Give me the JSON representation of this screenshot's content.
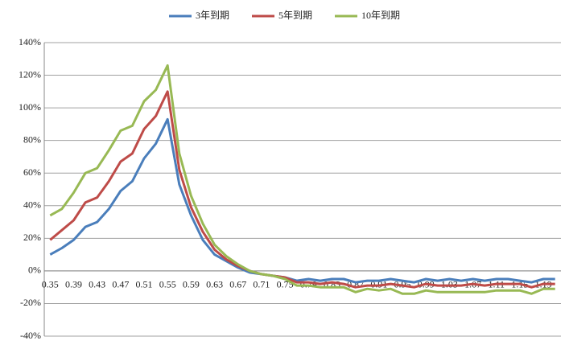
{
  "chart_data": {
    "type": "line",
    "categories": [
      "0.35",
      null,
      "0.39",
      null,
      "0.43",
      null,
      "0.47",
      null,
      "0.51",
      null,
      "0.55",
      null,
      "0.59",
      null,
      "0.63",
      null,
      "0.67",
      null,
      "0.71",
      null,
      "0.75",
      null,
      "0.79",
      null,
      "0.83",
      null,
      "0.87",
      null,
      "0.91",
      null,
      "0.95",
      null,
      "0.99",
      null,
      "1.03",
      null,
      "1.07",
      null,
      "1.11",
      null,
      "1.15",
      null,
      "1.19",
      null
    ],
    "series": [
      {
        "name": "3年到期",
        "color": "#4a7ebb",
        "values": [
          10,
          14,
          19,
          27,
          30,
          38,
          49,
          55,
          69,
          78,
          93,
          53,
          34,
          19,
          10,
          6,
          2,
          -1,
          -2,
          -3,
          -4,
          -6,
          -5,
          -6,
          -5,
          -5,
          -7,
          -6,
          -6,
          -5,
          -6,
          -7,
          -5,
          -6,
          -5,
          -6,
          -5,
          -6,
          -5,
          -5,
          -6,
          -7,
          -5,
          -5
        ]
      },
      {
        "name": "5年到期",
        "color": "#be4b48",
        "values": [
          19,
          25,
          31,
          42,
          45,
          55,
          67,
          72,
          87,
          95,
          110,
          62,
          39,
          24,
          13,
          7,
          3,
          0,
          -2,
          -3,
          -4,
          -7,
          -7,
          -8,
          -7,
          -8,
          -10,
          -9,
          -9,
          -8,
          -9,
          -10,
          -8,
          -9,
          -9,
          -9,
          -8,
          -9,
          -8,
          -8,
          -8,
          -10,
          -8,
          -8
        ]
      },
      {
        "name": "10年到期",
        "color": "#98b954",
        "values": [
          34,
          38,
          48,
          60,
          63,
          74,
          86,
          89,
          104,
          111,
          126,
          72,
          46,
          29,
          16,
          9,
          4,
          0,
          -2,
          -3,
          -5,
          -9,
          -9,
          -10,
          -10,
          -10,
          -13,
          -11,
          -12,
          -11,
          -14,
          -14,
          -12,
          -13,
          -13,
          -13,
          -13,
          -13,
          -12,
          -12,
          -12,
          -14,
          -11,
          -11
        ]
      }
    ],
    "ylim": [
      -40,
      140
    ],
    "yticks": [
      {
        "value": -40,
        "label": "-40%"
      },
      {
        "value": -20,
        "label": "-20%"
      },
      {
        "value": 0,
        "label": "0%"
      },
      {
        "value": 20,
        "label": "20%"
      },
      {
        "value": 40,
        "label": "40%"
      },
      {
        "value": 60,
        "label": "60%"
      },
      {
        "value": 80,
        "label": "80%"
      },
      {
        "value": 100,
        "label": "100%"
      },
      {
        "value": 120,
        "label": "120%"
      },
      {
        "value": 140,
        "label": "140%"
      }
    ],
    "grid": true,
    "legend": "top"
  }
}
